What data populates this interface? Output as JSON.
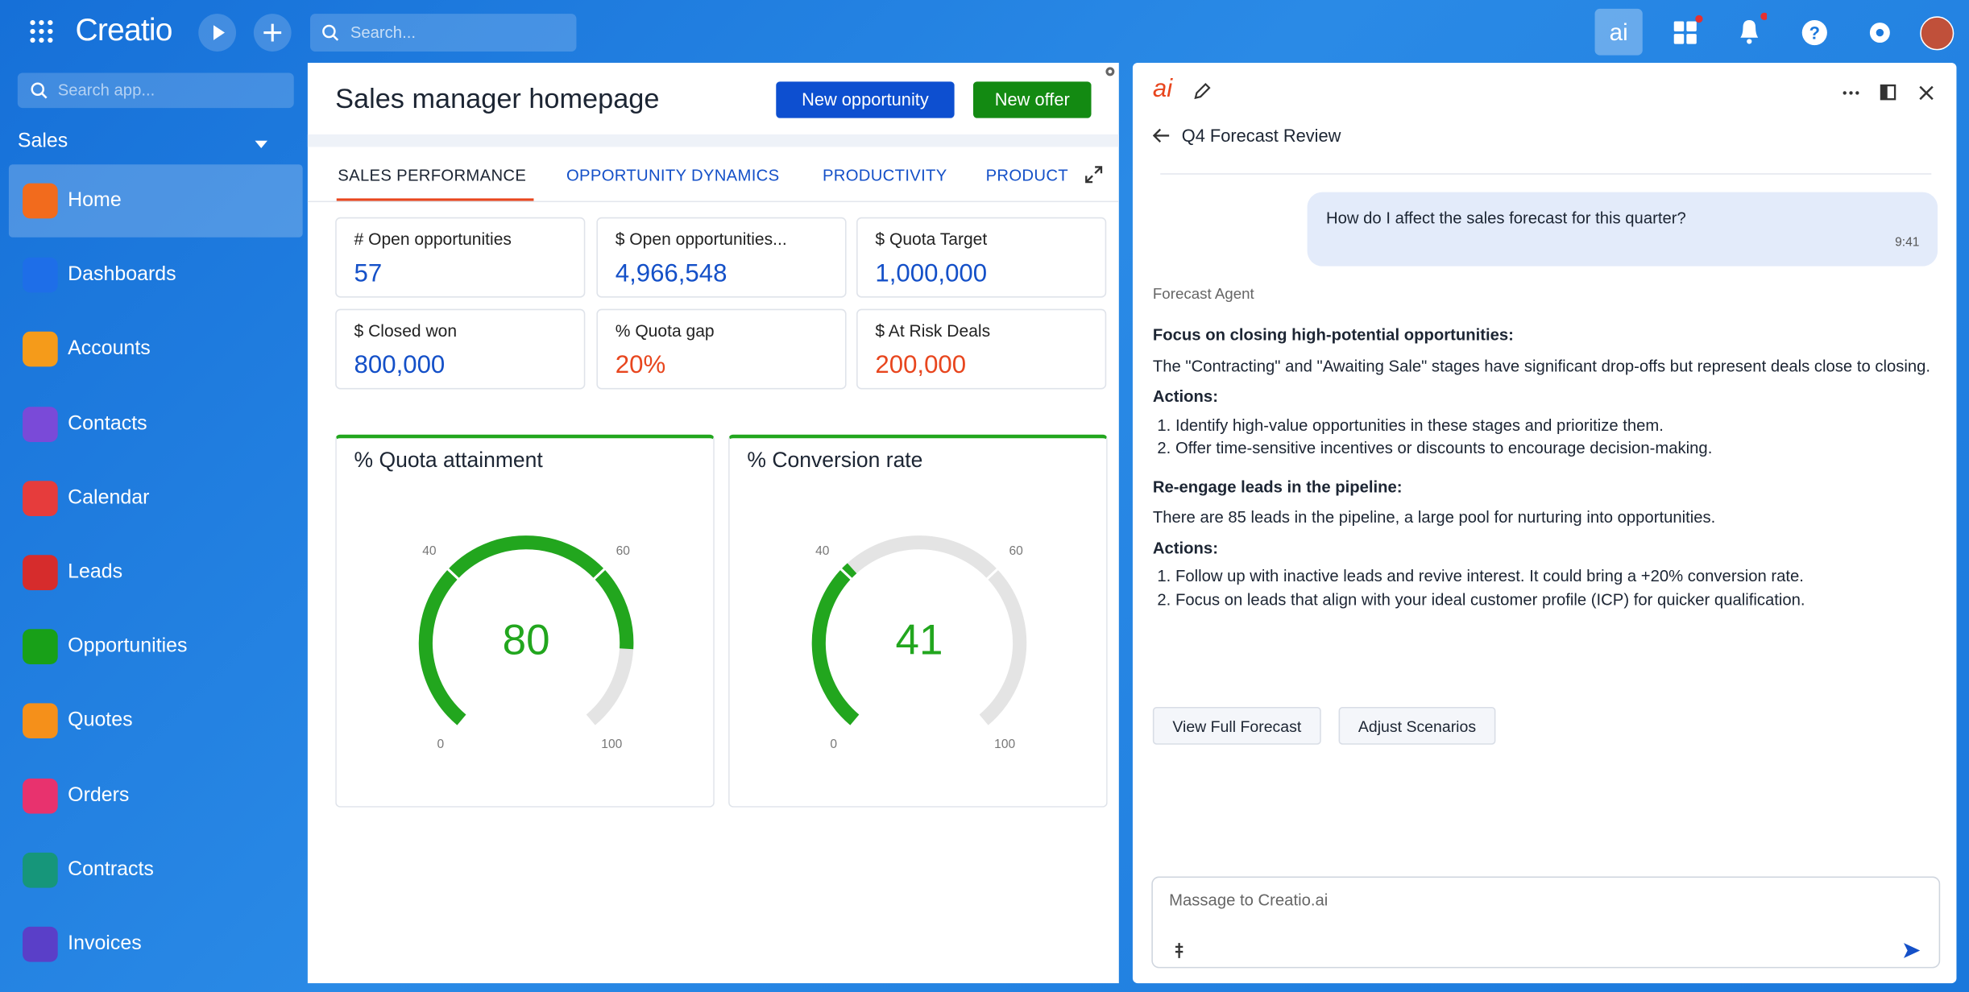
{
  "topbar": {
    "brand": "Creatio",
    "search_placeholder": "Search..."
  },
  "sidebar": {
    "search_placeholder": "Search app...",
    "section": "Sales",
    "items": [
      "Home",
      "Dashboards",
      "Accounts",
      "Contacts",
      "Calendar",
      "Leads",
      "Opportunities",
      "Quotes",
      "Orders",
      "Contracts",
      "Invoices"
    ]
  },
  "page": {
    "title": "Sales manager homepage",
    "buttons": [
      "New opportunity",
      "New offer"
    ],
    "tabs": [
      "SALES PERFORMANCE",
      "OPPORTUNITY DYNAMICS",
      "PRODUCTIVITY",
      "PRODUCTI"
    ]
  },
  "metrics": [
    {
      "label": "# Open opportunities",
      "value": "57",
      "color": "#1450c8"
    },
    {
      "label": "$ Open opportunities...",
      "value": "4,966,548",
      "color": "#1450c8"
    },
    {
      "label": "$ Quota Target",
      "value": "1,000,000",
      "color": "#1450c8"
    },
    {
      "label": "$ Closed won",
      "value": "800,000",
      "color": "#1450c8"
    },
    {
      "label": "% Quota gap",
      "value": "20%",
      "color": "#e8461e"
    },
    {
      "label": "$ At Risk Deals",
      "value": "200,000",
      "color": "#e8461e"
    }
  ],
  "gauges": [
    {
      "title": "% Quota attainment",
      "value": 80,
      "lim": [
        0,
        100
      ],
      "ticks": [
        0,
        40,
        60,
        100
      ],
      "color": "#22a61e"
    },
    {
      "title": "% Conversion rate",
      "value": 41,
      "lim": [
        0,
        100
      ],
      "ticks": [
        0,
        40,
        60,
        100
      ],
      "color": "#22a61e"
    }
  ],
  "assistant": {
    "logo": "ai",
    "title": "Q4 Forecast Review",
    "user_message": "How do I affect the sales forecast for this quarter?",
    "time": "9:41",
    "agent": "Forecast Agent",
    "sections": [
      {
        "heading": "Focus on closing high-potential opportunities:",
        "text": "The \"Contracting\" and \"Awaiting Sale\" stages have significant drop-offs but represent deals close to closing.",
        "actions_label": "Actions:",
        "actions": [
          "Identify high-value opportunities in these stages and prioritize them.",
          "Offer time-sensitive incentives or discounts to encourage decision-making."
        ]
      },
      {
        "heading": "Re-engage leads in the pipeline:",
        "text": "There are 85 leads in the pipeline, a large pool for nurturing into opportunities.",
        "actions_label": "Actions:",
        "actions": [
          "Follow up with inactive leads and revive interest. It could bring a +20% conversion rate.",
          "Focus on leads that align with your ideal customer profile (ICP) for quicker qualification."
        ]
      }
    ],
    "buttons": [
      "View Full Forecast",
      "Adjust Scenarios"
    ],
    "input_placeholder": "Massage to Creatio.ai"
  }
}
